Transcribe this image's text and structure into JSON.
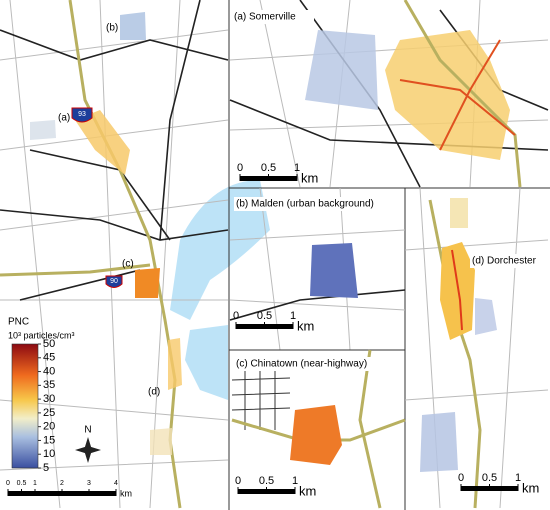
{
  "overview": {
    "labels": [
      "(a)",
      "(b)",
      "(c)",
      "(d)"
    ],
    "shields": [
      "93",
      "90"
    ],
    "north": "N",
    "scale": {
      "ticks": [
        0,
        0.5,
        1,
        2,
        3,
        4
      ],
      "unit": "km"
    }
  },
  "legend": {
    "title": "PNC",
    "unit": "10³ particles/cm³",
    "lim": [
      5,
      50
    ],
    "ticks": [
      50,
      45,
      40,
      35,
      30,
      25,
      20,
      15,
      10,
      5
    ]
  },
  "panels": [
    {
      "title": "(a) Somerville",
      "scale": {
        "ticks": [
          0,
          0.5,
          1
        ],
        "unit": "km"
      }
    },
    {
      "title": "(b) Malden (urban background)",
      "scale": {
        "ticks": [
          0,
          0.5,
          1
        ],
        "unit": "km"
      }
    },
    {
      "title": "(c) Chinatown (near-highway)",
      "scale": {
        "ticks": [
          0,
          0.5,
          1
        ],
        "unit": "km"
      }
    },
    {
      "title": "(d) Dorchester",
      "scale": {
        "ticks": [
          0,
          0.5,
          1
        ],
        "unit": "km"
      }
    }
  ]
}
